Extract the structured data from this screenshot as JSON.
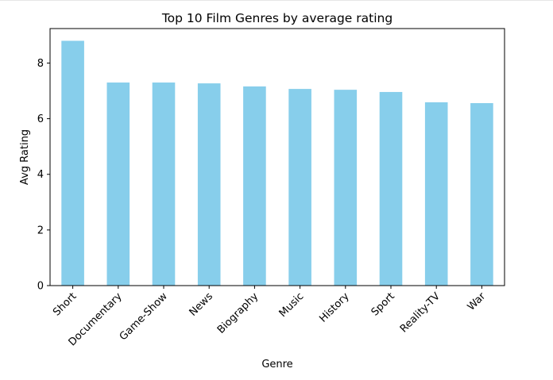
{
  "chart_data": {
    "type": "bar",
    "title": "Top 10 Film Genres by average rating",
    "xlabel": "Genre",
    "ylabel": "Avg Rating",
    "categories": [
      "Short",
      "Documentary",
      "Game-Show",
      "News",
      "Biography",
      "Music",
      "History",
      "Sport",
      "Reality-TV",
      "War"
    ],
    "values": [
      8.8,
      7.3,
      7.3,
      7.27,
      7.16,
      7.07,
      7.04,
      6.96,
      6.59,
      6.56
    ],
    "ylim": [
      0,
      9.24
    ],
    "yticks": [
      0,
      2,
      4,
      6,
      8
    ],
    "grid": false,
    "bar_color": "#87ceeb"
  }
}
